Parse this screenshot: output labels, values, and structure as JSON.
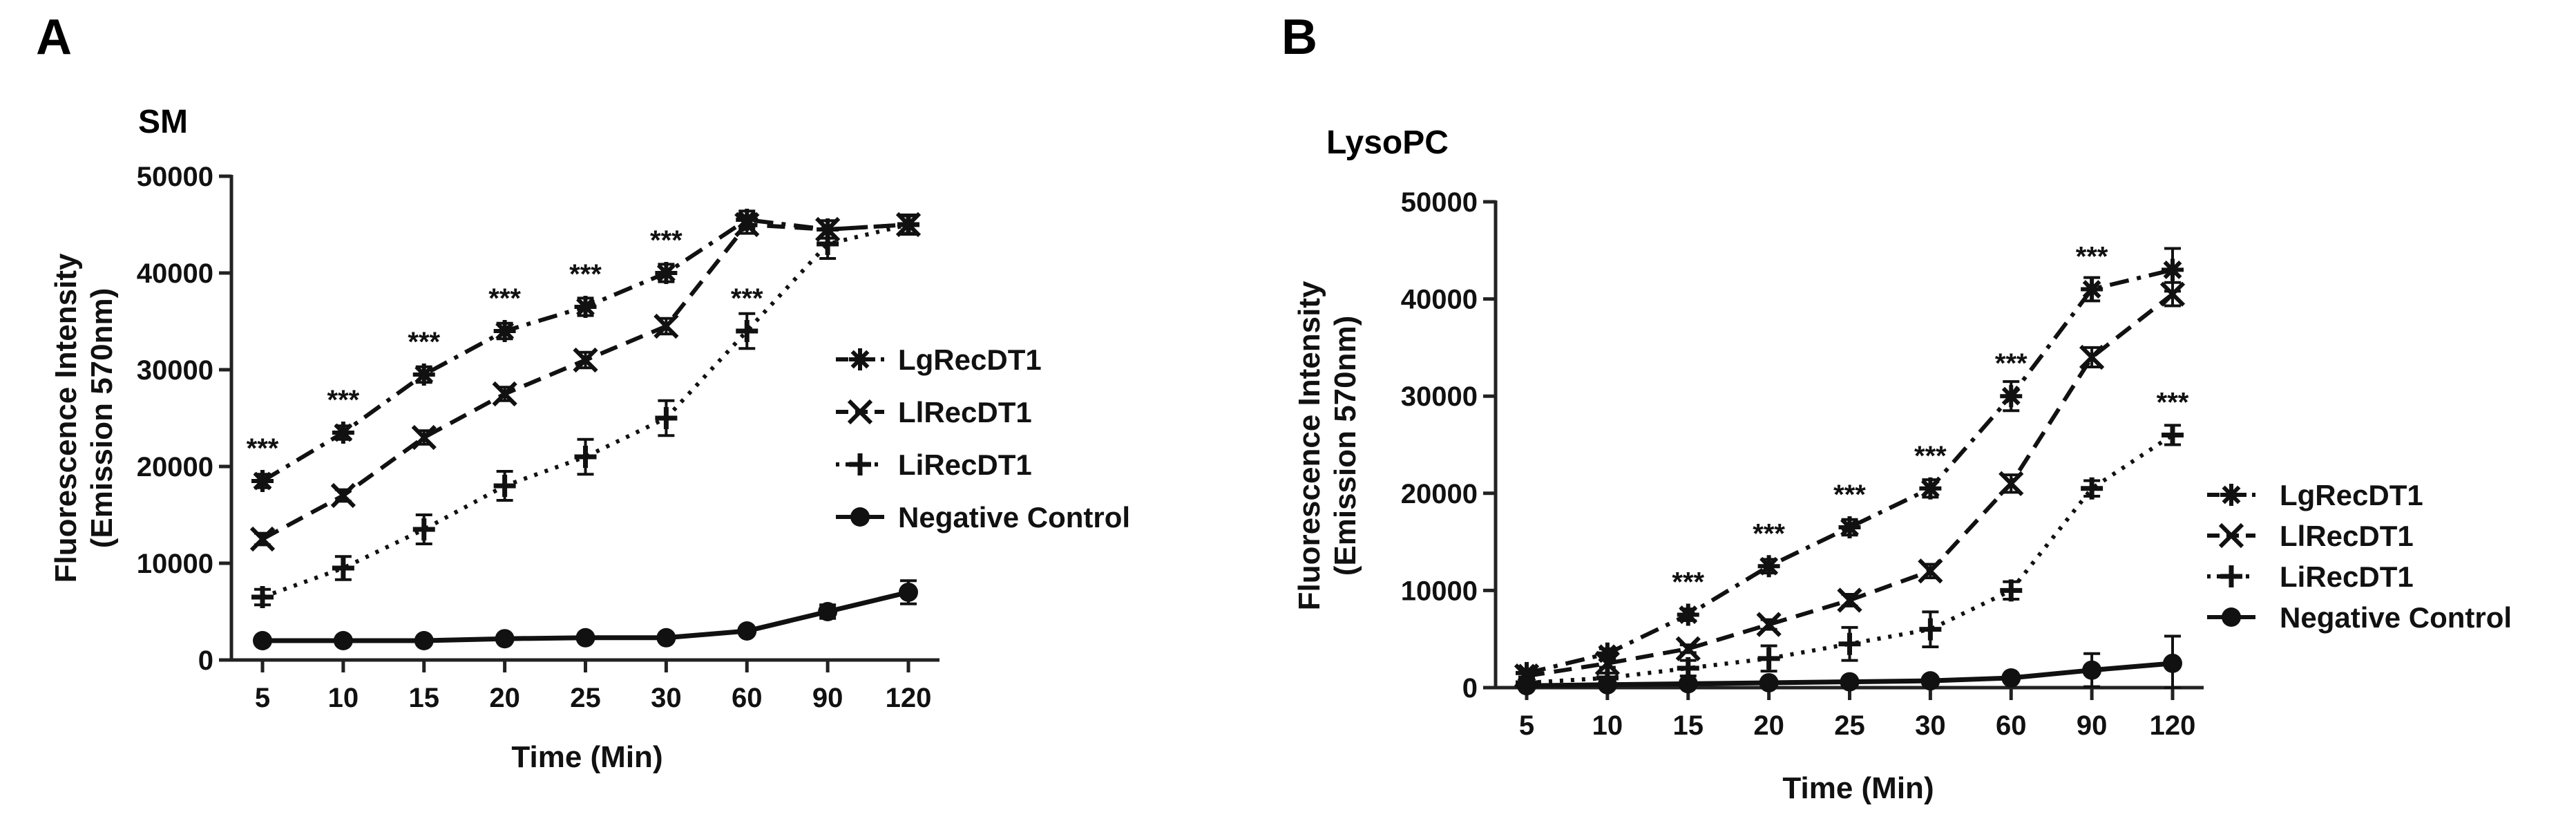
{
  "chart_data": [
    {
      "type": "line",
      "panel_label": "A",
      "title": "SM",
      "xlabel": "Time (Min)",
      "ylabel_line1": "Fluorescence Intensity",
      "ylabel_line2": "(Emission 570nm)",
      "categories": [
        "5",
        "10",
        "15",
        "20",
        "25",
        "30",
        "60",
        "90",
        "120"
      ],
      "ylim": [
        0,
        50000
      ],
      "yticks": [
        "0",
        "10000",
        "20000",
        "30000",
        "40000",
        "50000"
      ],
      "legend_position": "right",
      "series": [
        {
          "name": "LgRecDT1",
          "style": "dashdot",
          "marker": "asterisk",
          "values": [
            18500,
            23500,
            29500,
            34000,
            36500,
            40000,
            45500,
            44500,
            45000
          ],
          "errors": [
            700,
            700,
            800,
            800,
            900,
            900,
            900,
            900,
            900
          ]
        },
        {
          "name": "LlRecDT1",
          "style": "dashed",
          "marker": "x",
          "values": [
            12500,
            17000,
            23000,
            27500,
            31000,
            34500,
            45000,
            44500,
            45000
          ],
          "errors": [
            600,
            600,
            700,
            700,
            800,
            800,
            900,
            900,
            900
          ]
        },
        {
          "name": "LiRecDT1",
          "style": "dotted",
          "marker": "plus",
          "values": [
            6500,
            9500,
            13500,
            18000,
            21000,
            25000,
            34000,
            43000,
            45000
          ],
          "errors": [
            800,
            1200,
            1500,
            1500,
            1800,
            1800,
            1800,
            1500,
            1000
          ]
        },
        {
          "name": "Negative Control",
          "style": "solid",
          "marker": "circle",
          "values": [
            2000,
            2000,
            2000,
            2200,
            2300,
            2300,
            3000,
            5000,
            7000
          ],
          "errors": [
            200,
            200,
            200,
            200,
            200,
            200,
            300,
            700,
            1200
          ]
        }
      ],
      "annotations": [
        {
          "text": "***",
          "index": 0,
          "value": 18500
        },
        {
          "text": "***",
          "index": 1,
          "value": 23500
        },
        {
          "text": "***",
          "index": 2,
          "value": 29500
        },
        {
          "text": "***",
          "index": 3,
          "value": 34000
        },
        {
          "text": "***",
          "index": 4,
          "value": 36500
        },
        {
          "text": "***",
          "index": 5,
          "value": 40000
        },
        {
          "text": "***",
          "index": 6,
          "value": 34000
        }
      ]
    },
    {
      "type": "line",
      "panel_label": "B",
      "title": "LysoPC",
      "xlabel": "Time (Min)",
      "ylabel_line1": "Fluorescence Intensity",
      "ylabel_line2": "(Emission 570nm)",
      "categories": [
        "5",
        "10",
        "15",
        "20",
        "25",
        "30",
        "60",
        "90",
        "120"
      ],
      "ylim": [
        0,
        50000
      ],
      "yticks": [
        "0",
        "10000",
        "20000",
        "30000",
        "40000",
        "50000"
      ],
      "legend_position": "right",
      "series": [
        {
          "name": "LgRecDT1",
          "style": "dashdot",
          "marker": "asterisk",
          "values": [
            1500,
            3500,
            7500,
            12500,
            16500,
            20500,
            30000,
            41000,
            43000
          ],
          "errors": [
            400,
            500,
            600,
            700,
            800,
            900,
            1500,
            1200,
            2200
          ]
        },
        {
          "name": "LlRecDT1",
          "style": "dashed",
          "marker": "x",
          "values": [
            1200,
            2500,
            4000,
            6500,
            9000,
            12000,
            21000,
            34000,
            40500
          ],
          "errors": [
            300,
            400,
            400,
            500,
            600,
            700,
            900,
            1000,
            1200
          ]
        },
        {
          "name": "LiRecDT1",
          "style": "dotted",
          "marker": "plus",
          "values": [
            500,
            1000,
            2000,
            3000,
            4500,
            6000,
            10000,
            20500,
            26000
          ],
          "errors": [
            300,
            500,
            800,
            1300,
            1700,
            1800,
            900,
            800,
            1000
          ]
        },
        {
          "name": "Negative Control",
          "style": "solid",
          "marker": "circle",
          "values": [
            200,
            300,
            400,
            500,
            600,
            700,
            1000,
            1800,
            2500
          ],
          "errors": [
            100,
            100,
            100,
            100,
            100,
            100,
            300,
            1700,
            2800
          ]
        }
      ],
      "annotations": [
        {
          "text": "***",
          "index": 2,
          "value": 7500
        },
        {
          "text": "***",
          "index": 3,
          "value": 12500
        },
        {
          "text": "***",
          "index": 4,
          "value": 16500
        },
        {
          "text": "***",
          "index": 5,
          "value": 20500
        },
        {
          "text": "***",
          "index": 6,
          "value": 30000
        },
        {
          "text": "***",
          "index": 7,
          "value": 41000
        },
        {
          "text": "***",
          "index": 8,
          "value": 26000
        }
      ]
    }
  ]
}
